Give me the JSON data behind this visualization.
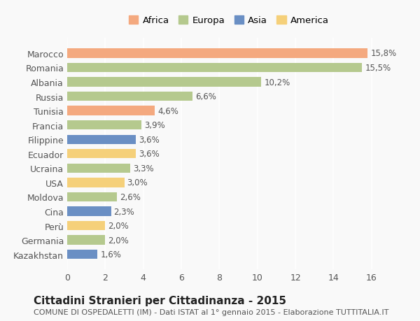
{
  "categories": [
    "Kazakhstan",
    "Germania",
    "Perù",
    "Cina",
    "Moldova",
    "USA",
    "Ucraina",
    "Ecuador",
    "Filippine",
    "Francia",
    "Tunisia",
    "Russia",
    "Albania",
    "Romania",
    "Marocco"
  ],
  "values": [
    1.6,
    2.0,
    2.0,
    2.3,
    2.6,
    3.0,
    3.3,
    3.6,
    3.6,
    3.9,
    4.6,
    6.6,
    10.2,
    15.5,
    15.8
  ],
  "continents": [
    "Asia",
    "Europa",
    "America",
    "Asia",
    "Europa",
    "America",
    "Europa",
    "America",
    "Asia",
    "Europa",
    "Africa",
    "Europa",
    "Europa",
    "Europa",
    "Africa"
  ],
  "colors": {
    "Africa": "#F4A97F",
    "Europa": "#B5C98E",
    "Asia": "#6A8FC4",
    "America": "#F5D07A"
  },
  "labels": [
    "1,6%",
    "2,0%",
    "2,0%",
    "2,3%",
    "2,6%",
    "3,0%",
    "3,3%",
    "3,6%",
    "3,6%",
    "3,9%",
    "4,6%",
    "6,6%",
    "10,2%",
    "15,5%",
    "15,8%"
  ],
  "title": "Cittadini Stranieri per Cittadinanza - 2015",
  "subtitle": "COMUNE DI OSPEDALETTI (IM) - Dati ISTAT al 1° gennaio 2015 - Elaborazione TUTTITALIA.IT",
  "xlim": [
    0,
    17
  ],
  "xticks": [
    0,
    2,
    4,
    6,
    8,
    10,
    12,
    14,
    16
  ],
  "legend_order": [
    "Africa",
    "Europa",
    "Asia",
    "America"
  ],
  "bg_color": "#f9f9f9",
  "grid_color": "#ffffff",
  "bar_height": 0.65,
  "title_fontsize": 11,
  "subtitle_fontsize": 8,
  "label_fontsize": 8.5,
  "tick_fontsize": 9
}
